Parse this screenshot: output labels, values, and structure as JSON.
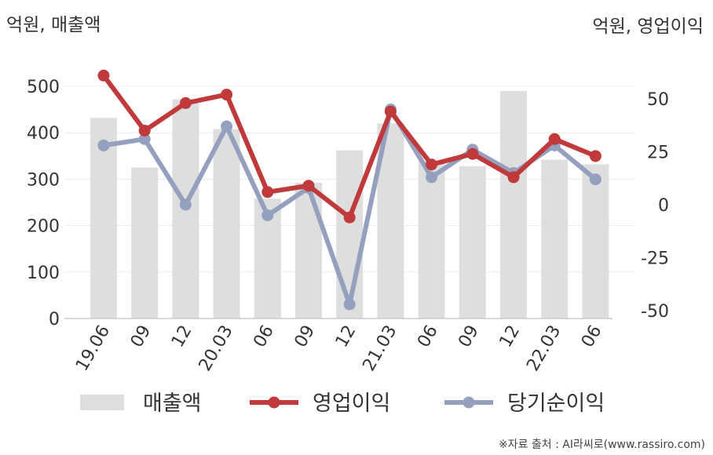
{
  "units": {
    "left": "억원, 매출액",
    "right": "억원, 영업이익"
  },
  "source": "※자료 출처 : AI라씨로(www.rassiro.com)",
  "chart_data": {
    "type": "bar",
    "categories": [
      "19.06",
      "09",
      "12",
      "20.03",
      "06",
      "09",
      "12",
      "21.03",
      "06",
      "09",
      "12",
      "22.03",
      "06"
    ],
    "series": [
      {
        "name": "매출액",
        "kind": "bar",
        "axis": "left",
        "color": "#dedede",
        "values": [
          432,
          325,
          472,
          408,
          258,
          292,
          362,
          420,
          338,
          328,
          490,
          342,
          332
        ]
      },
      {
        "name": "영업이익",
        "kind": "line",
        "axis": "right",
        "color": "#c0393b",
        "values": [
          61,
          35,
          48,
          52,
          6,
          9,
          -6,
          44,
          19,
          24,
          13,
          31,
          23
        ]
      },
      {
        "name": "당기순이익",
        "kind": "line",
        "axis": "right",
        "color": "#94a0bd",
        "values": [
          28,
          31,
          0,
          37,
          -5,
          8,
          -47,
          45,
          13,
          26,
          15,
          28,
          12
        ]
      }
    ],
    "y_left": {
      "min": 0,
      "max": 500,
      "ticks": [
        0,
        100,
        200,
        300,
        400,
        500
      ]
    },
    "y_right": {
      "min": -50,
      "max": 50,
      "ticks": [
        -50,
        -25,
        0,
        25,
        50
      ]
    },
    "grid": true,
    "legend": "bottom"
  }
}
